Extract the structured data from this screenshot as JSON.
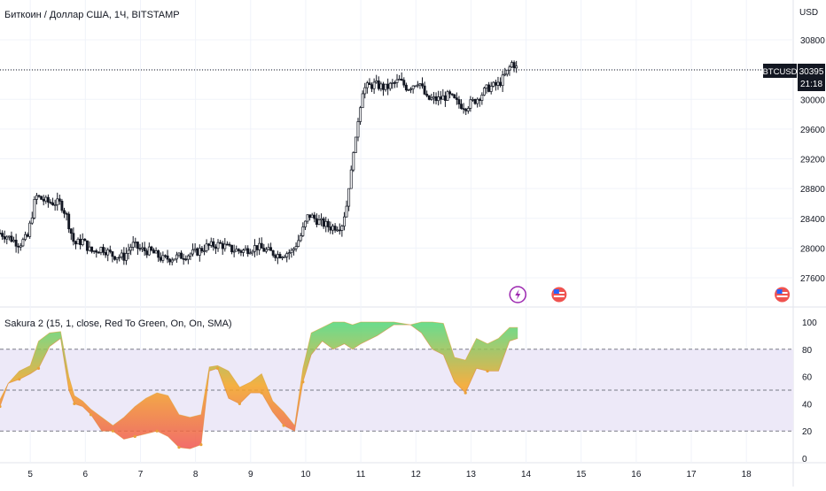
{
  "header": {
    "symbol_title": "Биткоин / Доллар США, 1Ч, BITSTAMP",
    "currency": "USD"
  },
  "price_badge": {
    "symbol": "BTCUSD",
    "price": "30395",
    "countdown": "21:18",
    "color": "#131722"
  },
  "indicator": {
    "title": "Sakura 2 (15, 1, close, Red To Green, On, On, SMA)"
  },
  "event_icons": [
    {
      "name": "lightning-icon",
      "day": 13.85
    },
    {
      "name": "us-flag-icon",
      "day": 14.6
    },
    {
      "name": "us-flag-icon",
      "day": 18.65
    }
  ],
  "colors": {
    "up": "#131722",
    "down": "#131722",
    "grid": "#f0f3fa",
    "band_fill": "#ede9f8",
    "high": "#4fd67a",
    "low": "#ef5350",
    "mid": "#f5a623"
  },
  "chart_data": [
    {
      "type": "candlestick",
      "title": "Биткоин / Доллар США, 1Ч, BITSTAMP",
      "x_label": "",
      "y_label": "USD",
      "x_ticks": [
        "5",
        "6",
        "7",
        "8",
        "9",
        "10",
        "11",
        "12",
        "13",
        "14",
        "15",
        "16",
        "17",
        "18"
      ],
      "y_ticks": [
        27600,
        28000,
        28400,
        28800,
        29200,
        29600,
        30000,
        30400,
        30800
      ],
      "ylim": [
        27400,
        31000
      ],
      "xlim": [
        4.45,
        18.85
      ],
      "last_price": 30395,
      "price_path": [
        [
          4.45,
          28200
        ],
        [
          4.6,
          28150
        ],
        [
          4.8,
          28050
        ],
        [
          4.95,
          28150
        ],
        [
          5.1,
          28700
        ],
        [
          5.3,
          28620
        ],
        [
          5.55,
          28600
        ],
        [
          5.65,
          28450
        ],
        [
          5.8,
          28050
        ],
        [
          5.95,
          28100
        ],
        [
          6.1,
          27950
        ],
        [
          6.3,
          28000
        ],
        [
          6.5,
          27900
        ],
        [
          6.7,
          27880
        ],
        [
          6.85,
          28050
        ],
        [
          7.0,
          27980
        ],
        [
          7.2,
          27950
        ],
        [
          7.4,
          27850
        ],
        [
          7.6,
          27870
        ],
        [
          7.8,
          27900
        ],
        [
          8.0,
          27940
        ],
        [
          8.2,
          28020
        ],
        [
          8.45,
          28050
        ],
        [
          8.65,
          27980
        ],
        [
          8.85,
          27960
        ],
        [
          9.1,
          28020
        ],
        [
          9.3,
          27960
        ],
        [
          9.5,
          27910
        ],
        [
          9.75,
          27950
        ],
        [
          9.9,
          28150
        ],
        [
          10.05,
          28450
        ],
        [
          10.25,
          28350
        ],
        [
          10.45,
          28280
        ],
        [
          10.65,
          28300
        ],
        [
          10.75,
          28600
        ],
        [
          10.85,
          29200
        ],
        [
          10.95,
          29700
        ],
        [
          11.05,
          30150
        ],
        [
          11.25,
          30200
        ],
        [
          11.45,
          30150
        ],
        [
          11.7,
          30250
        ],
        [
          11.85,
          30150
        ],
        [
          12.05,
          30250
        ],
        [
          12.2,
          30000
        ],
        [
          12.4,
          30000
        ],
        [
          12.6,
          30050
        ],
        [
          12.75,
          29950
        ],
        [
          12.9,
          29900
        ],
        [
          13.1,
          30000
        ],
        [
          13.3,
          30150
        ],
        [
          13.5,
          30200
        ],
        [
          13.65,
          30350
        ],
        [
          13.75,
          30500
        ],
        [
          13.85,
          30395
        ]
      ]
    },
    {
      "type": "area",
      "title": "Sakura 2 (15, 1, close, Red To Green, On, On, SMA)",
      "x_ticks": [
        "5",
        "6",
        "7",
        "8",
        "9",
        "10",
        "11",
        "12",
        "13",
        "14",
        "15",
        "16",
        "17",
        "18"
      ],
      "y_ticks": [
        0,
        20,
        40,
        60,
        80,
        100
      ],
      "ylim": [
        0,
        100
      ],
      "bands": [
        20,
        50,
        80
      ],
      "series": [
        {
          "x": [
            4.45,
            4.6,
            4.8,
            5.0,
            5.15,
            5.35,
            5.55,
            5.7,
            5.8,
            5.95,
            6.1,
            6.3,
            6.5,
            6.7,
            6.9,
            7.1,
            7.3,
            7.5,
            7.7,
            7.9,
            8.1,
            8.25,
            8.4,
            8.6,
            8.8,
            9.0,
            9.2,
            9.4,
            9.6,
            9.8,
            9.95,
            10.1,
            10.3,
            10.5,
            10.7,
            10.85,
            11.0,
            11.3,
            11.6,
            11.9,
            12.1,
            12.3,
            12.5,
            12.7,
            12.9,
            13.1,
            13.3,
            13.5,
            13.7,
            13.85
          ],
          "upper": [
            43,
            55,
            64,
            68,
            86,
            92,
            93,
            60,
            46,
            42,
            36,
            30,
            24,
            30,
            38,
            44,
            48,
            46,
            32,
            30,
            32,
            67,
            68,
            64,
            52,
            56,
            62,
            42,
            34,
            24,
            66,
            92,
            96,
            100,
            100,
            98,
            100,
            100,
            100,
            98,
            100,
            100,
            99,
            74,
            72,
            88,
            84,
            88,
            96,
            96
          ],
          "lower": [
            38,
            55,
            58,
            62,
            66,
            82,
            88,
            50,
            40,
            38,
            32,
            20,
            20,
            14,
            16,
            18,
            20,
            16,
            8,
            7,
            10,
            64,
            66,
            44,
            40,
            48,
            48,
            34,
            24,
            20,
            56,
            76,
            86,
            80,
            84,
            80,
            84,
            90,
            98,
            98,
            92,
            80,
            76,
            56,
            48,
            66,
            64,
            64,
            86,
            88
          ]
        }
      ]
    }
  ]
}
